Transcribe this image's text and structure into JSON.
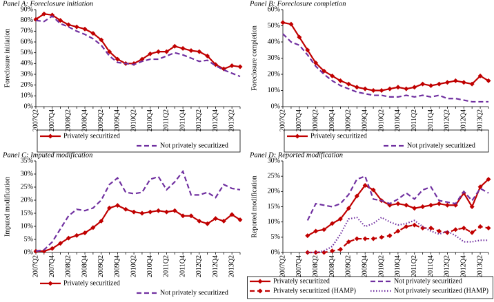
{
  "chart_data": [
    {
      "type": "line",
      "title": "Panel A: Foreclosure initiation",
      "y_label": "Foreclosure initiation",
      "categories": [
        "2007Q2",
        null,
        "2007Q4",
        null,
        "2008Q2",
        null,
        "2008Q4",
        null,
        "2009Q2",
        null,
        "2009Q4",
        null,
        "2010Q2",
        null,
        "2010Q4",
        null,
        "2011Q2",
        null,
        "2011Q4",
        null,
        "2012Q2",
        null,
        "2012Q4",
        null,
        "2013Q2",
        null
      ],
      "ylim": [
        0,
        90
      ],
      "yticks": [
        {
          "value": 0,
          "label": "0%"
        },
        {
          "value": 10,
          "label": "10%"
        },
        {
          "value": 20,
          "label": "20%"
        },
        {
          "value": 30,
          "label": "30%"
        },
        {
          "value": 40,
          "label": "40%"
        },
        {
          "value": 50,
          "label": "50%"
        },
        {
          "value": 60,
          "label": "60%"
        },
        {
          "value": 70,
          "label": "70%"
        },
        {
          "value": 80,
          "label": "80%"
        },
        {
          "value": 90,
          "label": "90%"
        }
      ],
      "legend": "bottom",
      "series": [
        {
          "name": "Privately securitized",
          "color": "#c00000",
          "style": "solid",
          "marker": "diamond",
          "values": [
            81,
            86,
            85,
            80,
            76,
            74,
            72,
            68,
            62,
            51,
            44,
            40,
            40,
            44,
            49,
            51,
            51,
            56,
            54,
            52,
            51,
            47,
            39,
            35,
            38,
            37
          ]
        },
        {
          "name": "Not privately securitized",
          "color": "#7030a0",
          "style": "dash",
          "marker": "none",
          "values": [
            80,
            79,
            84,
            77,
            74,
            70,
            67,
            63,
            57,
            47,
            41,
            40,
            39,
            42,
            44,
            44,
            47,
            50,
            48,
            45,
            42,
            43,
            38,
            34,
            31,
            28
          ]
        }
      ]
    },
    {
      "type": "line",
      "title": "Panel B: Foreclosure completion",
      "y_label": "Foreclosure completion",
      "categories": [
        "2007Q2",
        null,
        "2007Q4",
        null,
        "2008Q2",
        null,
        "2008Q4",
        null,
        "2009Q2",
        null,
        "2009Q4",
        null,
        "2010Q2",
        null,
        "2010Q4",
        null,
        "2011Q2",
        null,
        "2011Q4",
        null,
        "2012Q2",
        null,
        "2012Q4",
        null,
        "2013Q2",
        null
      ],
      "ylim": [
        0,
        60
      ],
      "yticks": [
        {
          "value": 0,
          "label": "0%"
        },
        {
          "value": 10,
          "label": "10%"
        },
        {
          "value": 20,
          "label": "20%"
        },
        {
          "value": 30,
          "label": "30%"
        },
        {
          "value": 40,
          "label": "40%"
        },
        {
          "value": 50,
          "label": "50%"
        },
        {
          "value": 60,
          "label": "60%"
        }
      ],
      "legend": "bottom",
      "series": [
        {
          "name": "Privately securitized",
          "color": "#c00000",
          "style": "solid",
          "marker": "diamond",
          "values": [
            52,
            51,
            43,
            35,
            27,
            22,
            19,
            16,
            14,
            12,
            11,
            10,
            10,
            11,
            12,
            11,
            12,
            14,
            13,
            14,
            15,
            16,
            15,
            14,
            19,
            16
          ]
        },
        {
          "name": "Not privately securitized",
          "color": "#7030a0",
          "style": "dash",
          "marker": "none",
          "values": [
            45,
            40,
            38,
            32,
            25,
            20,
            16,
            13,
            11,
            9,
            8,
            7,
            7,
            6,
            6,
            7,
            6,
            7,
            6,
            7,
            5,
            5,
            4,
            3,
            3,
            3
          ]
        }
      ]
    },
    {
      "type": "line",
      "title": "Panel C: Imputed modification",
      "y_label": "Imputed modification",
      "categories": [
        "2007Q2",
        null,
        "2007Q4",
        null,
        "2008Q2",
        null,
        "2008Q4",
        null,
        "2009Q2",
        null,
        "2009Q4",
        null,
        "2010Q2",
        null,
        "2010Q4",
        null,
        "2011Q2",
        null,
        "2011Q4",
        null,
        "2012Q2",
        null,
        "2012Q4",
        null,
        "2013Q2",
        null
      ],
      "ylim": [
        0,
        35
      ],
      "yticks": [
        {
          "value": 0,
          "label": "0%"
        },
        {
          "value": 5,
          "label": "5%"
        },
        {
          "value": 10,
          "label": "10%"
        },
        {
          "value": 15,
          "label": "15%"
        },
        {
          "value": 20,
          "label": "20%"
        },
        {
          "value": 25,
          "label": "25%"
        },
        {
          "value": 30,
          "label": "30%"
        },
        {
          "value": 35,
          "label": "35%"
        }
      ],
      "legend": "bottom",
      "series": [
        {
          "name": "Privately securitized",
          "color": "#c00000",
          "style": "solid",
          "marker": "diamond",
          "values": [
            0.5,
            0.5,
            1.5,
            3.5,
            5.5,
            6.5,
            7.5,
            9.5,
            12,
            17,
            18,
            16.5,
            15.5,
            15,
            15.5,
            16,
            15.5,
            16,
            14,
            14,
            12,
            11,
            13,
            12,
            14.5,
            12.5
          ]
        },
        {
          "name": "Not privately securitized",
          "color": "#7030a0",
          "style": "dash",
          "marker": "none",
          "values": [
            0.5,
            1,
            4,
            9,
            14,
            16.5,
            16,
            17,
            20,
            26,
            28.5,
            23,
            22.5,
            23,
            28,
            29,
            24,
            27,
            31,
            22,
            22,
            23,
            21,
            26,
            24.5,
            24
          ]
        }
      ]
    },
    {
      "type": "line",
      "title": "Panel D: Reported modification",
      "y_label": "Reported modification",
      "categories": [
        "2007Q2",
        null,
        "2007Q4",
        null,
        "2008Q2",
        null,
        "2008Q4",
        null,
        "2009Q2",
        null,
        "2009Q4",
        null,
        "2010Q2",
        null,
        "2010Q4",
        null,
        "2011Q2",
        null,
        "2011Q4",
        null,
        "2012Q2",
        null,
        "2012Q4",
        null,
        "2013Q2",
        null
      ],
      "ylim": [
        0,
        30
      ],
      "yticks": [
        {
          "value": 0,
          "label": "0%"
        },
        {
          "value": 5,
          "label": "5%"
        },
        {
          "value": 10,
          "label": "10%"
        },
        {
          "value": 15,
          "label": "15%"
        },
        {
          "value": 20,
          "label": "20%"
        },
        {
          "value": 25,
          "label": "25%"
        },
        {
          "value": 30,
          "label": "30%"
        }
      ],
      "legend": "bottom",
      "series": [
        {
          "name": "Privately securitized",
          "color": "#c00000",
          "style": "solid",
          "marker": "diamond",
          "values": [
            null,
            null,
            null,
            5.5,
            7,
            7.5,
            9.5,
            11,
            14.5,
            18.5,
            22,
            20.5,
            17,
            15.5,
            16,
            15.5,
            14.5,
            15,
            15.5,
            16,
            15.5,
            15.5,
            19.5,
            15,
            21.5,
            24
          ]
        },
        {
          "name": "Not privately securitized",
          "color": "#7030a0",
          "style": "dash",
          "marker": "none",
          "values": [
            null,
            null,
            null,
            10.5,
            16,
            15.5,
            15,
            16,
            19,
            24,
            25,
            17.5,
            17,
            16,
            17.5,
            19.5,
            17.5,
            20.5,
            21.5,
            17,
            16.5,
            16,
            20,
            17,
            21,
            19.5
          ]
        },
        {
          "name": "Privately securitized (HAMP)",
          "color": "#c00000",
          "style": "dash",
          "marker": "diamond",
          "values": [
            null,
            null,
            null,
            0,
            0,
            0,
            0.5,
            1,
            3.5,
            4.5,
            4.5,
            4.5,
            5,
            5.5,
            7,
            8.5,
            9,
            8,
            8,
            7,
            6.5,
            7.5,
            8,
            6.5,
            8.5,
            8
          ]
        },
        {
          "name": "Not privately securitized (HAMP)",
          "color": "#7030a0",
          "style": "dot",
          "marker": "none",
          "values": [
            null,
            null,
            null,
            0,
            0,
            0.5,
            2,
            6,
            11,
            11.5,
            8.5,
            9.5,
            11.5,
            10,
            9,
            9.5,
            10.5,
            8.5,
            7,
            6,
            7,
            5.5,
            3.5,
            3.5,
            4,
            4
          ]
        }
      ]
    }
  ]
}
